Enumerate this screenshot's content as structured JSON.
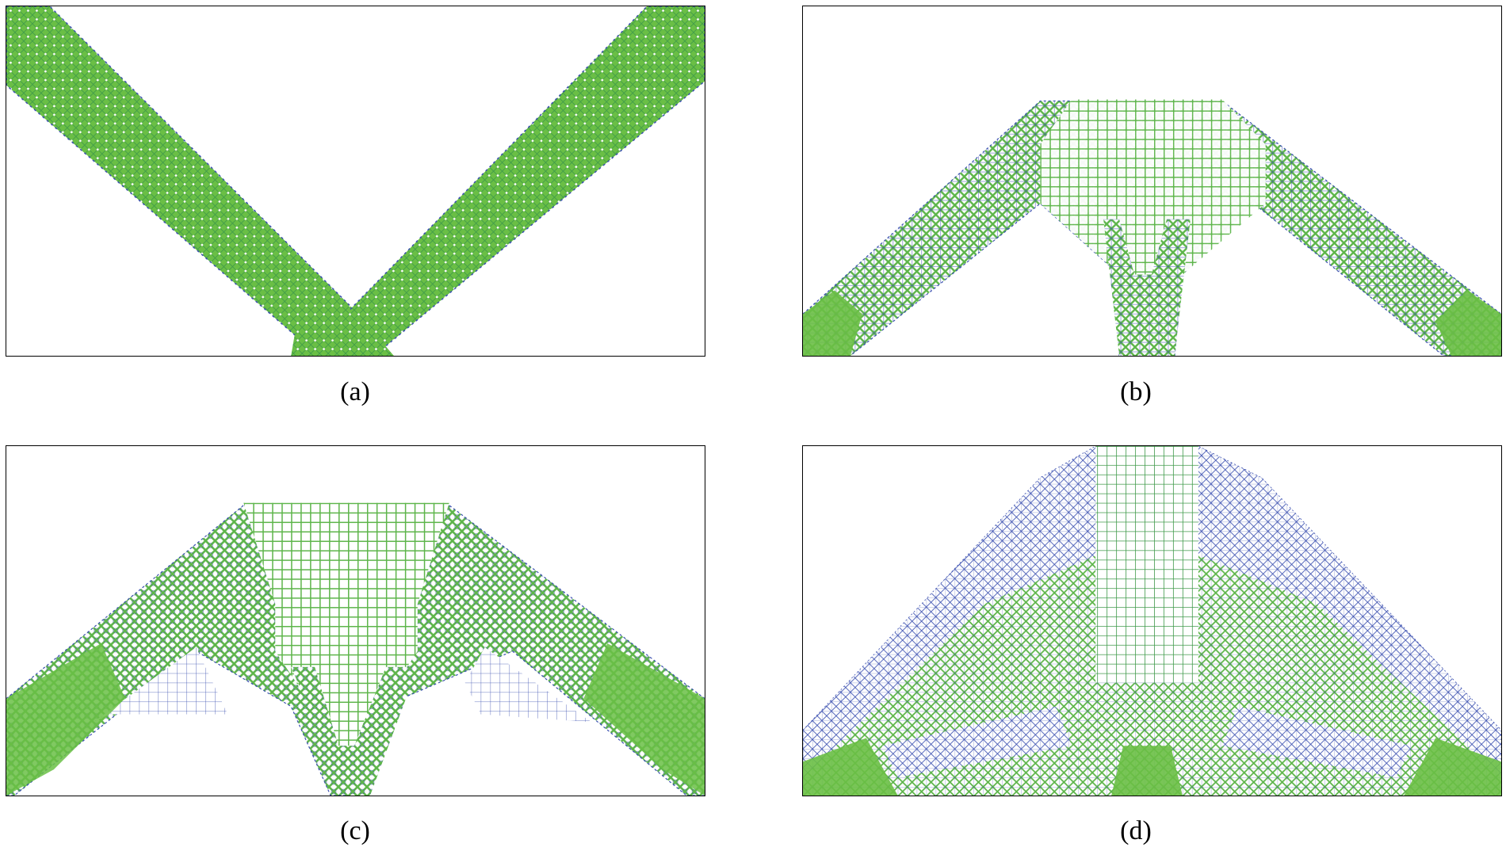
{
  "figure": {
    "panels": [
      {
        "id": "a",
        "caption": "(a)"
      },
      {
        "id": "b",
        "caption": "(b)"
      },
      {
        "id": "c",
        "caption": "(c)"
      },
      {
        "id": "d",
        "caption": "(d)"
      }
    ]
  },
  "colors": {
    "green": "#6abf45",
    "dark_green": "#3f9a4a",
    "blue": "#3a4fb0",
    "frame": "#000000",
    "background": "#ffffff"
  }
}
